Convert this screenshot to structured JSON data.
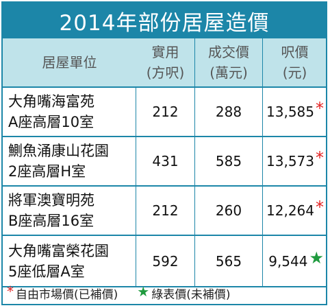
{
  "title": "2014年部份居屋造價",
  "header": {
    "col1": "居屋單位",
    "col2_line1": "實用",
    "col2_line2": "(方呎)",
    "col3_line1": "成交價",
    "col3_line2": "(萬元)",
    "col4_line1": "呎價",
    "col4_line2": "(元)"
  },
  "rows": [
    {
      "name_line1": "大角嘴海富苑",
      "name_line2": "A座高層10室",
      "area": "212",
      "price": "288",
      "psf": "13,585",
      "marker": "*",
      "marker_color": "#e32121"
    },
    {
      "name_line1": "鰂魚涌康山花園",
      "name_line2": "2座高層H室",
      "area": "431",
      "price": "585",
      "psf": "13,573",
      "marker": "*",
      "marker_color": "#e32121"
    },
    {
      "name_line1": "將軍澳寶明苑",
      "name_line2": "B座高層16室",
      "area": "212",
      "price": "260",
      "psf": "12,264",
      "marker": "*",
      "marker_color": "#e32121"
    },
    {
      "name_line1": "大角嘴富榮花園",
      "name_line2": "5座低層A室",
      "area": "592",
      "price": "565",
      "psf": "9,544",
      "marker": "★",
      "marker_color": "#1f9a3e"
    }
  ],
  "footer": {
    "left_marker": "*",
    "left_text": "自由市場價(已補價)",
    "right_marker": "★",
    "right_text": "綠表價(未補價)"
  },
  "colors": {
    "title_bg": "#1c86a8",
    "header_bg": "#bfe3ea",
    "red_star": "#e32121",
    "green_star": "#1f9a3e"
  }
}
